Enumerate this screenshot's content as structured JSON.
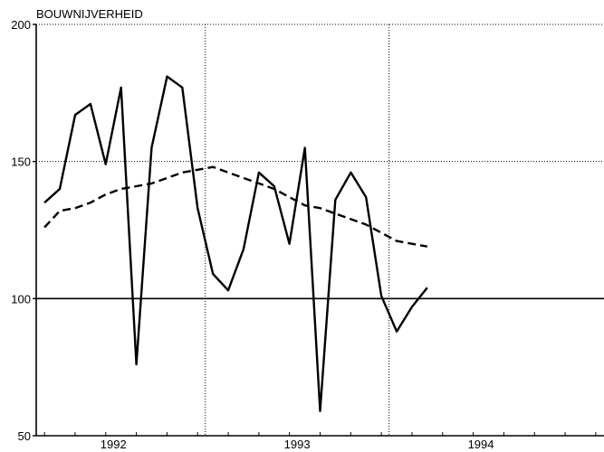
{
  "chart_data": {
    "type": "line",
    "title": "BOUWNIJVERHEID",
    "xlabel": "",
    "ylabel": "",
    "ylim": [
      50,
      200
    ],
    "xlim": [
      1991.58,
      1994.67
    ],
    "y_ticks": [
      50,
      100,
      150,
      200
    ],
    "y_tick_labels": [
      "50",
      "100",
      "150",
      "200"
    ],
    "x_ticks": [
      1992.0,
      1993.0,
      1994.0
    ],
    "x_tick_labels": [
      "1992",
      "1993",
      "1994"
    ],
    "vertical_gridlines_x": [
      1991.58,
      1992.5,
      1993.5
    ],
    "horizontal_gridlines_y": [
      150,
      200
    ],
    "reference_line_y": 100,
    "grid": true,
    "series": [
      {
        "style": "solid",
        "x": [
          1991.625,
          1991.708,
          1991.792,
          1991.875,
          1991.958,
          1992.042,
          1992.125,
          1992.208,
          1992.292,
          1992.375,
          1992.458,
          1992.542,
          1992.625,
          1992.708,
          1992.792,
          1992.875,
          1992.958,
          1993.042,
          1993.125,
          1993.208,
          1993.292,
          1993.375,
          1993.458,
          1993.542,
          1993.625,
          1993.708
        ],
        "values": [
          135,
          140,
          167,
          171,
          149,
          177,
          76,
          155,
          181,
          177,
          133,
          109,
          103,
          118,
          146,
          141,
          120,
          155,
          59,
          136,
          146,
          137,
          101,
          88,
          97,
          104
        ]
      },
      {
        "style": "dashed",
        "x": [
          1991.625,
          1991.708,
          1991.792,
          1991.875,
          1991.958,
          1992.042,
          1992.125,
          1992.208,
          1992.292,
          1992.375,
          1992.458,
          1992.542,
          1992.625,
          1992.708,
          1992.792,
          1992.875,
          1992.958,
          1993.042,
          1993.125,
          1993.208,
          1993.292,
          1993.375,
          1993.458,
          1993.542,
          1993.625,
          1993.708
        ],
        "values": [
          126,
          132,
          133,
          135,
          138,
          140,
          141,
          142,
          144,
          146,
          147,
          148,
          146,
          144,
          142,
          140,
          137,
          134,
          133,
          131,
          129,
          127,
          124,
          121,
          120,
          119
        ]
      }
    ]
  }
}
